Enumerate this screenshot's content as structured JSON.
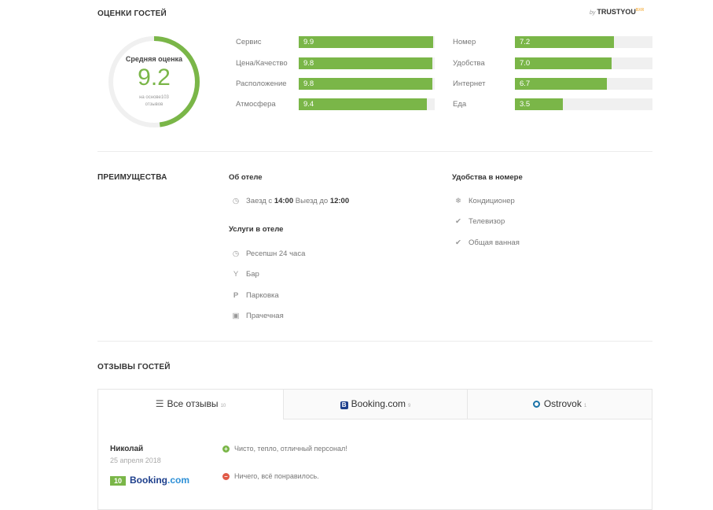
{
  "ratings": {
    "title": "ОЦЕНКИ ГОСТЕЙ",
    "brand_by": "by",
    "brand_name": "TRUSTYOU",
    "brand_sup": "BXR",
    "average_label": "Средняя оценка",
    "average_value": "9.2",
    "average_sub": "на основе103 отзывов",
    "average_fraction": 0.92,
    "colors": {
      "accent": "#7ab648",
      "track": "#f0f0f0"
    },
    "left": [
      {
        "label": "Сервис",
        "value": "9.9",
        "fraction": 0.99
      },
      {
        "label": "Цена/Качество",
        "value": "9.8",
        "fraction": 0.98
      },
      {
        "label": "Расположение",
        "value": "9.8",
        "fraction": 0.98
      },
      {
        "label": "Атмосфера",
        "value": "9.4",
        "fraction": 0.94
      }
    ],
    "right": [
      {
        "label": "Номер",
        "value": "7.2",
        "fraction": 0.72
      },
      {
        "label": "Удобства",
        "value": "7.0",
        "fraction": 0.7
      },
      {
        "label": "Интернет",
        "value": "6.7",
        "fraction": 0.67
      },
      {
        "label": "Еда",
        "value": "3.5",
        "fraction": 0.35
      }
    ]
  },
  "advantages": {
    "title": "ПРЕИМУЩЕСТВА",
    "about_title": "Об отеле",
    "checkin_prefix": "Заезд с",
    "checkin_time": "14:00",
    "checkout_prefix": "Выезд до",
    "checkout_time": "12:00",
    "services_title": "Услуги в отеле",
    "services": [
      {
        "icon": "clock-icon",
        "label": "Ресепшн 24 часа"
      },
      {
        "icon": "cocktail-icon",
        "label": "Бар"
      },
      {
        "icon": "parking-icon",
        "label": "Парковка"
      },
      {
        "icon": "laundry-icon",
        "label": "Прачечная"
      }
    ],
    "room_title": "Удобства в номере",
    "room": [
      {
        "icon": "snowflake-icon",
        "label": "Кондиционер"
      },
      {
        "icon": "check-icon",
        "label": "Телевизор"
      },
      {
        "icon": "check-icon",
        "label": "Общая ванная"
      }
    ]
  },
  "reviews": {
    "title": "ОТЗЫВЫ ГОСТЕЙ",
    "tabs": [
      {
        "label": "Все отзывы",
        "count": "10"
      },
      {
        "label": "Booking.com",
        "count": "9"
      },
      {
        "label": "Ostrovok",
        "count": "1"
      }
    ],
    "items": [
      {
        "name": "Николай",
        "date": "25 апреля 2018",
        "score": "10",
        "source_main": "Booking",
        "source_tld": ".com",
        "positive": "Чисто, тепло, отличный персонал!",
        "negative": "Ничего, всё понравилось."
      }
    ]
  }
}
